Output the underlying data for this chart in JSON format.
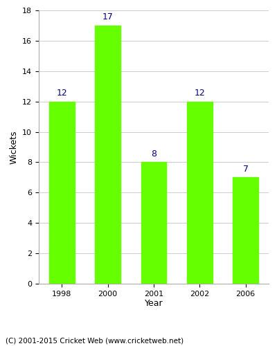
{
  "categories": [
    "1998",
    "2000",
    "2001",
    "2002",
    "2006"
  ],
  "values": [
    12,
    17,
    8,
    12,
    7
  ],
  "bar_color": "#66ff00",
  "bar_edgecolor": "#66ff00",
  "label_color": "#00008B",
  "xlabel": "Year",
  "ylabel": "Wickets",
  "ylim": [
    0,
    18
  ],
  "yticks": [
    0,
    2,
    4,
    6,
    8,
    10,
    12,
    14,
    16,
    18
  ],
  "grid_color": "#cccccc",
  "background_color": "#ffffff",
  "label_fontsize": 9,
  "axis_label_fontsize": 9,
  "tick_fontsize": 8,
  "footer_text": "(C) 2001-2015 Cricket Web (www.cricketweb.net)",
  "footer_fontsize": 7.5
}
